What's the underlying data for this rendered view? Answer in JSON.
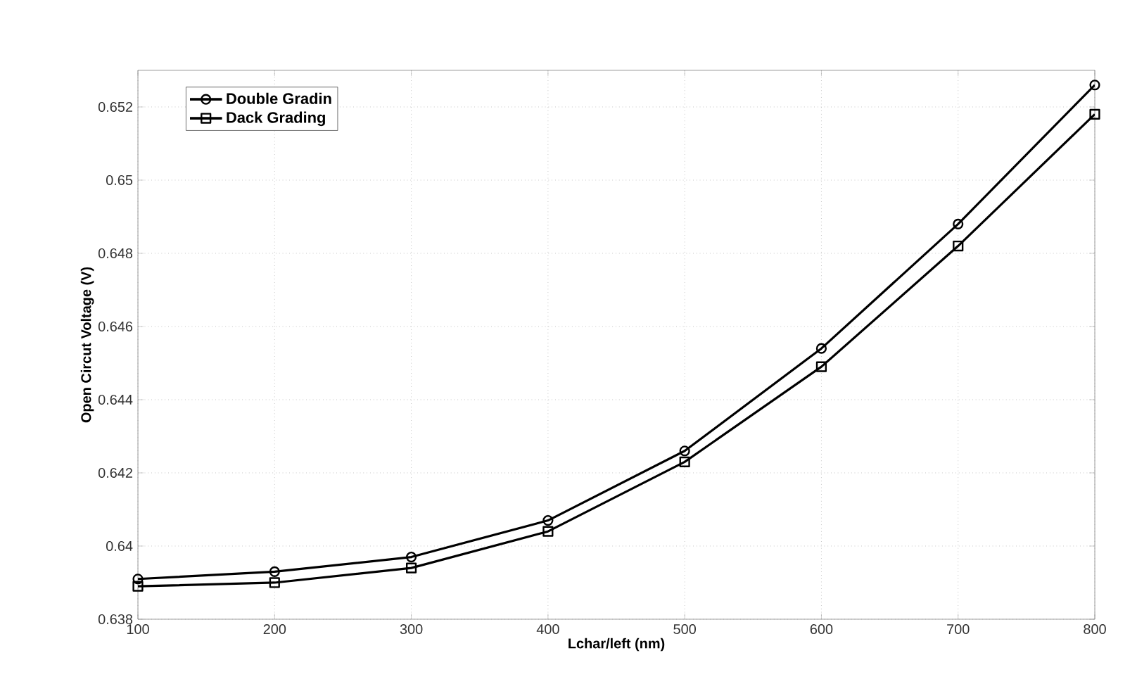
{
  "chart_data": {
    "type": "line",
    "xlabel": "Lchar/left (nm)",
    "ylabel": "Open Circut Voltage (V)",
    "x": [
      100,
      200,
      300,
      400,
      500,
      600,
      700,
      800
    ],
    "series": [
      {
        "name": "Double Gradin",
        "color": "#000000",
        "marker": "circle",
        "values": [
          0.6391,
          0.6393,
          0.6397,
          0.6407,
          0.6426,
          0.6454,
          0.6488,
          0.6526
        ]
      },
      {
        "name": "Dack Grading",
        "color": "#000000",
        "marker": "square",
        "values": [
          0.6389,
          0.639,
          0.6394,
          0.6404,
          0.6423,
          0.6449,
          0.6482,
          0.6518
        ]
      }
    ],
    "xlim": [
      100,
      800
    ],
    "ylim": [
      0.638,
      0.653
    ],
    "xticks": [
      100,
      200,
      300,
      400,
      500,
      600,
      700,
      800
    ],
    "yticks": [
      0.638,
      0.64,
      0.642,
      0.644,
      0.646,
      0.648,
      0.65,
      0.652
    ],
    "grid": true,
    "legend": "top left",
    "line_style": "solid"
  }
}
